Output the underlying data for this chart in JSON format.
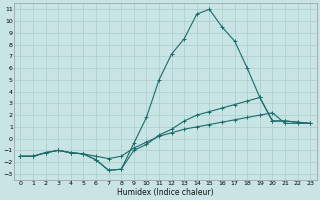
{
  "xlabel": "Humidex (Indice chaleur)",
  "background_color": "#c8e4e4",
  "grid_color": "#b0d0d0",
  "line_color": "#1a6b6b",
  "xlim": [
    -0.5,
    23.5
  ],
  "ylim": [
    -3.5,
    11.5
  ],
  "xticks": [
    0,
    1,
    2,
    3,
    4,
    5,
    6,
    7,
    8,
    9,
    10,
    11,
    12,
    13,
    14,
    15,
    16,
    17,
    18,
    19,
    20,
    21,
    22,
    23
  ],
  "yticks": [
    -3,
    -2,
    -1,
    0,
    1,
    2,
    3,
    4,
    5,
    6,
    7,
    8,
    9,
    10,
    11
  ],
  "series1_x": [
    0,
    1,
    2,
    3,
    4,
    5,
    6,
    7,
    8,
    9,
    10,
    11,
    12,
    13,
    14,
    15,
    16,
    17,
    18,
    19,
    20,
    21,
    22,
    23
  ],
  "series1_y": [
    -1.5,
    -1.5,
    -1.2,
    -1.0,
    -1.2,
    -1.3,
    -1.8,
    -2.7,
    -2.6,
    -0.4,
    1.8,
    5.0,
    7.2,
    8.5,
    10.6,
    11.0,
    9.5,
    8.3,
    6.0,
    3.5,
    1.5,
    1.5,
    1.4,
    1.3
  ],
  "series2_x": [
    0,
    1,
    2,
    3,
    4,
    5,
    6,
    7,
    8,
    9,
    10,
    11,
    12,
    13,
    14,
    15,
    16,
    17,
    18,
    19,
    20,
    21,
    22,
    23
  ],
  "series2_y": [
    -1.5,
    -1.5,
    -1.2,
    -1.0,
    -1.2,
    -1.3,
    -1.8,
    -2.7,
    -2.6,
    -1.0,
    -0.5,
    0.3,
    0.8,
    1.5,
    2.0,
    2.3,
    2.6,
    2.9,
    3.2,
    3.5,
    1.5,
    1.5,
    1.4,
    1.3
  ],
  "series3_x": [
    0,
    1,
    2,
    3,
    4,
    5,
    6,
    7,
    8,
    9,
    10,
    11,
    12,
    13,
    14,
    15,
    16,
    17,
    18,
    19,
    20,
    21,
    22,
    23
  ],
  "series3_y": [
    -1.5,
    -1.5,
    -1.2,
    -1.0,
    -1.2,
    -1.3,
    -1.5,
    -1.7,
    -1.5,
    -0.8,
    -0.3,
    0.2,
    0.5,
    0.8,
    1.0,
    1.2,
    1.4,
    1.6,
    1.8,
    2.0,
    2.2,
    1.3,
    1.3,
    1.3
  ]
}
